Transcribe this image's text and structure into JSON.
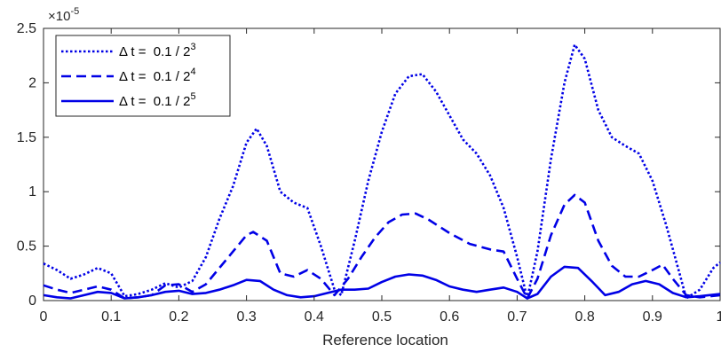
{
  "chart_data": {
    "type": "line",
    "xlabel": "Reference location",
    "ylabel": "",
    "xlim": [
      0,
      1
    ],
    "ylim": [
      0,
      2.5
    ],
    "y_exponent_base": "×10",
    "y_exponent_power": "-5",
    "xticks": [
      "0",
      "0.1",
      "0.2",
      "0.3",
      "0.4",
      "0.5",
      "0.6",
      "0.7",
      "0.8",
      "0.9",
      "1"
    ],
    "yticks": [
      "0",
      "0.5",
      "1",
      "1.5",
      "2",
      "2.5"
    ],
    "grid": false,
    "legend_position": "top-left",
    "line_color": "#0000E6",
    "series": [
      {
        "legend_prefix": "Δ t =  0.1 / 2",
        "legend_power": "3",
        "style": "dotted",
        "points": [
          [
            0,
            0.34
          ],
          [
            0.02,
            0.28
          ],
          [
            0.04,
            0.2
          ],
          [
            0.06,
            0.24
          ],
          [
            0.08,
            0.3
          ],
          [
            0.1,
            0.25
          ],
          [
            0.12,
            0.04
          ],
          [
            0.14,
            0.06
          ],
          [
            0.16,
            0.1
          ],
          [
            0.18,
            0.16
          ],
          [
            0.2,
            0.12
          ],
          [
            0.22,
            0.18
          ],
          [
            0.24,
            0.4
          ],
          [
            0.26,
            0.75
          ],
          [
            0.28,
            1.05
          ],
          [
            0.3,
            1.45
          ],
          [
            0.315,
            1.58
          ],
          [
            0.33,
            1.42
          ],
          [
            0.35,
            1.0
          ],
          [
            0.37,
            0.9
          ],
          [
            0.39,
            0.85
          ],
          [
            0.41,
            0.5
          ],
          [
            0.43,
            0.1
          ],
          [
            0.44,
            0.05
          ],
          [
            0.46,
            0.55
          ],
          [
            0.48,
            1.1
          ],
          [
            0.5,
            1.55
          ],
          [
            0.52,
            1.9
          ],
          [
            0.54,
            2.06
          ],
          [
            0.56,
            2.08
          ],
          [
            0.58,
            1.92
          ],
          [
            0.6,
            1.7
          ],
          [
            0.62,
            1.48
          ],
          [
            0.64,
            1.35
          ],
          [
            0.66,
            1.15
          ],
          [
            0.68,
            0.85
          ],
          [
            0.7,
            0.4
          ],
          [
            0.715,
            0.02
          ],
          [
            0.73,
            0.45
          ],
          [
            0.75,
            1.3
          ],
          [
            0.77,
            2.0
          ],
          [
            0.785,
            2.35
          ],
          [
            0.8,
            2.22
          ],
          [
            0.82,
            1.75
          ],
          [
            0.84,
            1.5
          ],
          [
            0.86,
            1.42
          ],
          [
            0.88,
            1.35
          ],
          [
            0.9,
            1.1
          ],
          [
            0.92,
            0.7
          ],
          [
            0.94,
            0.25
          ],
          [
            0.95,
            0.02
          ],
          [
            0.97,
            0.1
          ],
          [
            0.99,
            0.3
          ],
          [
            1.0,
            0.35
          ]
        ]
      },
      {
        "legend_prefix": "Δ t =  0.1 / 2",
        "legend_power": "4",
        "style": "dashed",
        "points": [
          [
            0,
            0.14
          ],
          [
            0.02,
            0.1
          ],
          [
            0.04,
            0.07
          ],
          [
            0.06,
            0.1
          ],
          [
            0.08,
            0.13
          ],
          [
            0.1,
            0.1
          ],
          [
            0.12,
            0.02
          ],
          [
            0.14,
            0.03
          ],
          [
            0.16,
            0.05
          ],
          [
            0.18,
            0.14
          ],
          [
            0.2,
            0.15
          ],
          [
            0.22,
            0.08
          ],
          [
            0.24,
            0.15
          ],
          [
            0.26,
            0.3
          ],
          [
            0.28,
            0.45
          ],
          [
            0.3,
            0.6
          ],
          [
            0.31,
            0.63
          ],
          [
            0.33,
            0.55
          ],
          [
            0.35,
            0.25
          ],
          [
            0.37,
            0.22
          ],
          [
            0.39,
            0.28
          ],
          [
            0.41,
            0.2
          ],
          [
            0.43,
            0.05
          ],
          [
            0.45,
            0.2
          ],
          [
            0.47,
            0.4
          ],
          [
            0.49,
            0.58
          ],
          [
            0.51,
            0.72
          ],
          [
            0.53,
            0.79
          ],
          [
            0.55,
            0.8
          ],
          [
            0.57,
            0.74
          ],
          [
            0.6,
            0.62
          ],
          [
            0.63,
            0.52
          ],
          [
            0.66,
            0.47
          ],
          [
            0.68,
            0.45
          ],
          [
            0.7,
            0.2
          ],
          [
            0.715,
            0.02
          ],
          [
            0.73,
            0.2
          ],
          [
            0.75,
            0.6
          ],
          [
            0.77,
            0.88
          ],
          [
            0.785,
            0.97
          ],
          [
            0.8,
            0.9
          ],
          [
            0.82,
            0.55
          ],
          [
            0.84,
            0.32
          ],
          [
            0.86,
            0.22
          ],
          [
            0.88,
            0.22
          ],
          [
            0.9,
            0.28
          ],
          [
            0.915,
            0.33
          ],
          [
            0.93,
            0.2
          ],
          [
            0.95,
            0.05
          ],
          [
            0.97,
            0.03
          ],
          [
            1.0,
            0.05
          ]
        ]
      },
      {
        "legend_prefix": "Δ t =  0.1 / 2",
        "legend_power": "5",
        "style": "solid",
        "points": [
          [
            0,
            0.05
          ],
          [
            0.02,
            0.03
          ],
          [
            0.04,
            0.02
          ],
          [
            0.06,
            0.05
          ],
          [
            0.08,
            0.08
          ],
          [
            0.1,
            0.07
          ],
          [
            0.12,
            0.02
          ],
          [
            0.14,
            0.03
          ],
          [
            0.16,
            0.05
          ],
          [
            0.18,
            0.08
          ],
          [
            0.2,
            0.09
          ],
          [
            0.22,
            0.06
          ],
          [
            0.24,
            0.07
          ],
          [
            0.26,
            0.1
          ],
          [
            0.28,
            0.14
          ],
          [
            0.3,
            0.19
          ],
          [
            0.32,
            0.18
          ],
          [
            0.34,
            0.1
          ],
          [
            0.36,
            0.05
          ],
          [
            0.38,
            0.03
          ],
          [
            0.4,
            0.04
          ],
          [
            0.42,
            0.07
          ],
          [
            0.44,
            0.1
          ],
          [
            0.46,
            0.1
          ],
          [
            0.48,
            0.11
          ],
          [
            0.5,
            0.17
          ],
          [
            0.52,
            0.22
          ],
          [
            0.54,
            0.24
          ],
          [
            0.56,
            0.23
          ],
          [
            0.58,
            0.19
          ],
          [
            0.6,
            0.13
          ],
          [
            0.62,
            0.1
          ],
          [
            0.64,
            0.08
          ],
          [
            0.66,
            0.1
          ],
          [
            0.68,
            0.12
          ],
          [
            0.7,
            0.08
          ],
          [
            0.715,
            0.02
          ],
          [
            0.73,
            0.06
          ],
          [
            0.75,
            0.22
          ],
          [
            0.77,
            0.31
          ],
          [
            0.79,
            0.3
          ],
          [
            0.81,
            0.18
          ],
          [
            0.83,
            0.05
          ],
          [
            0.85,
            0.08
          ],
          [
            0.87,
            0.15
          ],
          [
            0.89,
            0.18
          ],
          [
            0.91,
            0.15
          ],
          [
            0.93,
            0.07
          ],
          [
            0.95,
            0.03
          ],
          [
            0.97,
            0.04
          ],
          [
            1.0,
            0.06
          ]
        ]
      }
    ]
  }
}
